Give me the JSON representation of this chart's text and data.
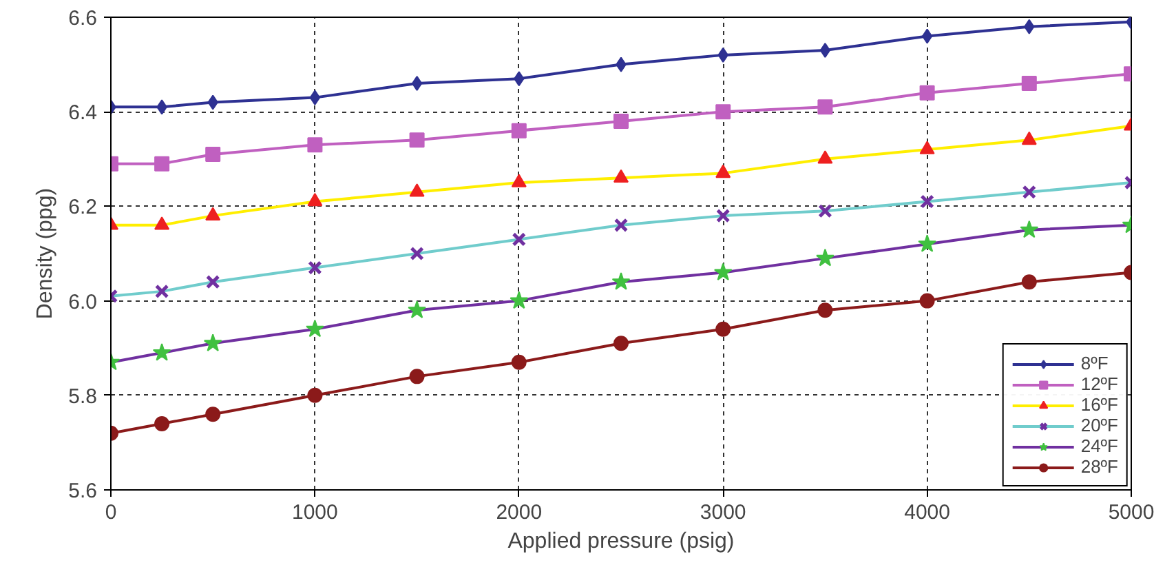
{
  "chart_data": {
    "type": "line",
    "xlabel": "Applied pressure (psig)",
    "ylabel": "Density (ppg)",
    "x": [
      0,
      250,
      500,
      1000,
      1500,
      2000,
      2500,
      3000,
      3500,
      4000,
      4500,
      5000
    ],
    "xlim": [
      0,
      5000
    ],
    "xticks": [
      0,
      1000,
      2000,
      3000,
      4000,
      5000
    ],
    "ylim": [
      5.6,
      6.6
    ],
    "yticks": [
      5.6,
      5.8,
      {
        "value": 6,
        "label": "6.0"
      },
      6.2,
      6.4,
      6.6
    ],
    "grid": true,
    "legend": "bottom right",
    "series": [
      {
        "name": "8ºF",
        "color": "#2e3192",
        "marker": "diamond",
        "values": [
          6.41,
          6.41,
          6.42,
          6.43,
          6.46,
          6.47,
          6.5,
          6.52,
          6.53,
          6.56,
          6.58,
          6.59
        ]
      },
      {
        "name": "12ºF",
        "color": "#c060c0",
        "marker": "square",
        "values": [
          6.29,
          6.29,
          6.31,
          6.33,
          6.34,
          6.36,
          6.38,
          6.4,
          6.41,
          6.44,
          6.46,
          6.48
        ]
      },
      {
        "name": "16ºF",
        "color": "#ffee00",
        "marker": "triangle",
        "colors": [
          "#ee2020",
          "#ee2020",
          "#ee2020",
          "#ee2020",
          "#ee2020",
          "#ee2020",
          "#ee2020",
          "#ee2020",
          "#ee2020",
          "#ee2020",
          "#ee2020",
          "#ee2020"
        ],
        "values": [
          6.16,
          6.16,
          6.18,
          6.21,
          6.23,
          6.25,
          6.26,
          6.27,
          6.3,
          6.32,
          6.34,
          6.37
        ]
      },
      {
        "name": "20ºF",
        "color": "#70cccc",
        "marker": "cross",
        "colors": [
          "#7030a0",
          "#7030a0",
          "#7030a0",
          "#7030a0",
          "#7030a0",
          "#7030a0",
          "#7030a0",
          "#7030a0",
          "#7030a0",
          "#7030a0",
          "#7030a0",
          "#7030a0"
        ],
        "values": [
          6.01,
          6.02,
          6.04,
          6.07,
          6.1,
          6.13,
          6.16,
          6.18,
          6.19,
          6.21,
          6.23,
          6.25
        ]
      },
      {
        "name": "24ºF",
        "color": "#7030a0",
        "marker": "star",
        "colors": [
          "#40c040",
          "#40c040",
          "#40c040",
          "#40c040",
          "#40c040",
          "#40c040",
          "#40c040",
          "#40c040",
          "#40c040",
          "#40c040",
          "#40c040",
          "#40c040"
        ],
        "values": [
          5.87,
          5.89,
          5.91,
          5.94,
          5.98,
          6.0,
          6.04,
          6.06,
          6.09,
          6.12,
          6.15,
          6.16
        ]
      },
      {
        "name": "28ºF",
        "color": "#8b1a1a",
        "marker": "circle",
        "values": [
          5.72,
          5.74,
          5.76,
          5.8,
          5.84,
          5.87,
          5.91,
          5.94,
          5.98,
          6.0,
          6.04,
          6.06
        ]
      }
    ]
  }
}
